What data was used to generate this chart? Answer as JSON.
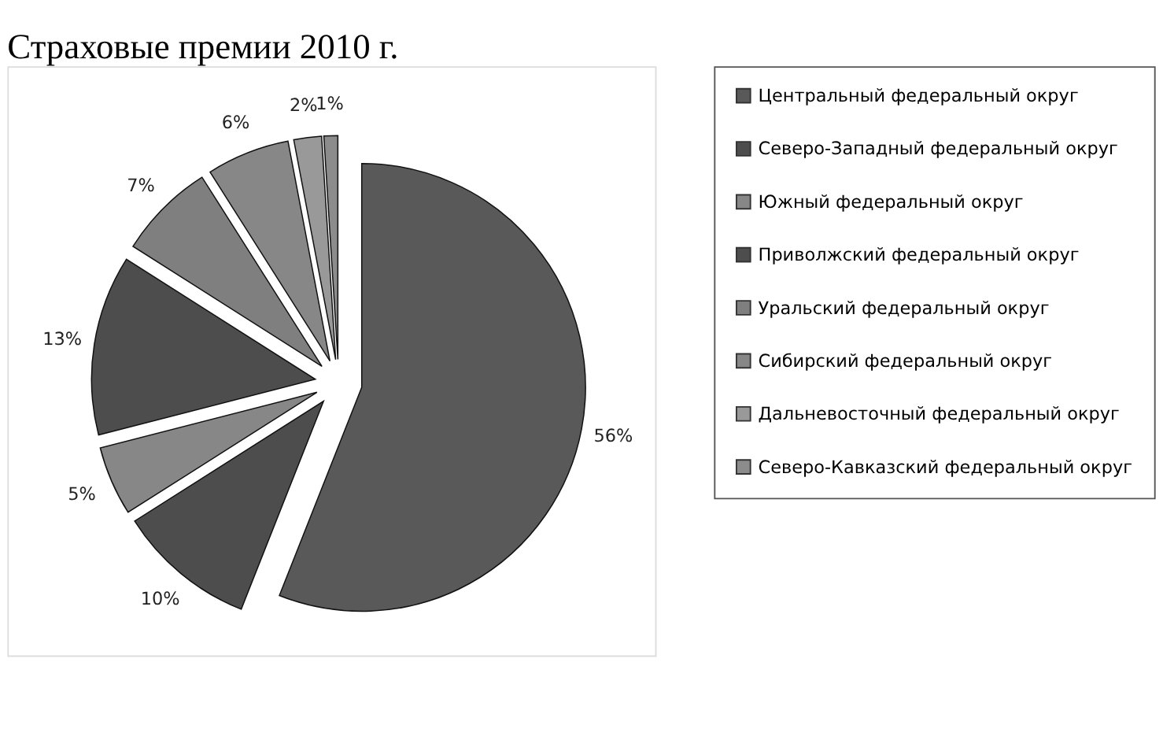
{
  "chart_data": {
    "type": "pie",
    "title": "Страховые премии 2010 г.",
    "categories": [
      "Центральный федеральный округ",
      "Северо-Западный федеральный округ",
      "Южный федеральный округ",
      "Приволжский федеральный округ",
      "Уральский федеральный округ",
      "Сибирский федеральный округ",
      "Дальневосточный федеральный округ",
      "Северо-Кавказский федеральный округ"
    ],
    "values": [
      56,
      10,
      5,
      13,
      7,
      6,
      2,
      1
    ],
    "colors": [
      "#595959",
      "#4d4d4d",
      "#878787",
      "#4d4d4d",
      "#7f7f7f",
      "#878787",
      "#999999",
      "#8c8c8c"
    ],
    "value_labels": [
      "56%",
      "10%",
      "5%",
      "13%",
      "7%",
      "6%",
      "2%",
      "1%"
    ],
    "legend": "right"
  }
}
